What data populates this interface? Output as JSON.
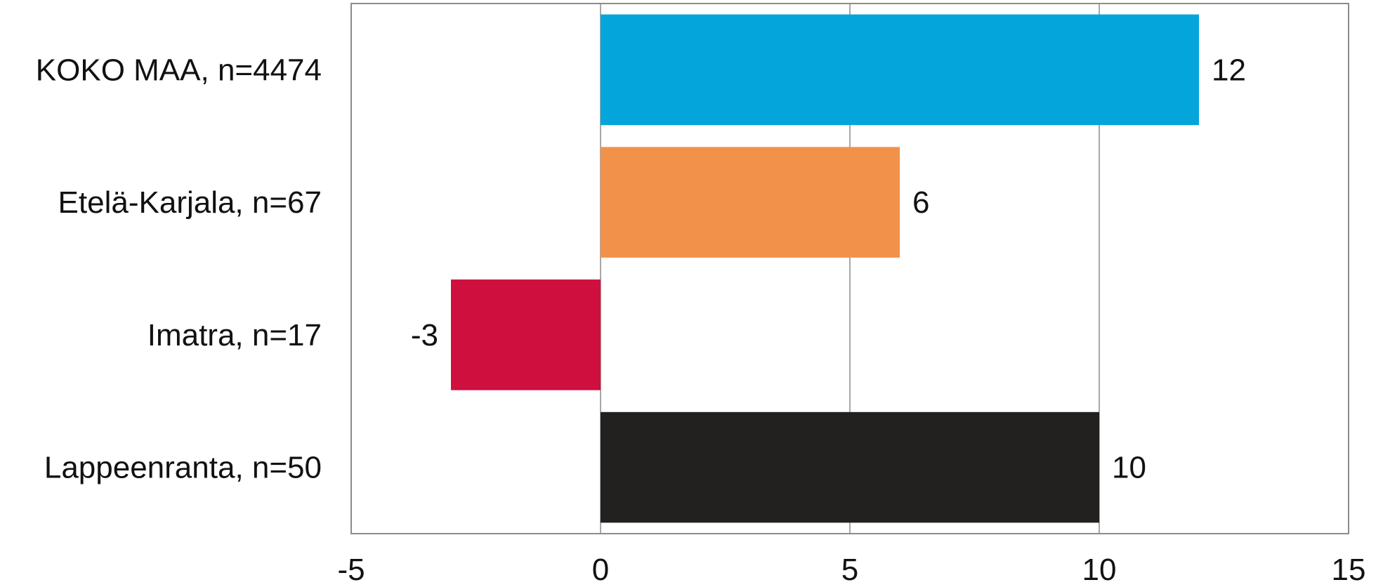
{
  "chart_data": {
    "type": "bar",
    "orientation": "horizontal",
    "categories": [
      "KOKO MAA, n=4474",
      "Etelä-Karjala, n=67",
      "Imatra, n=17",
      "Lappeenranta, n=50"
    ],
    "values": [
      12,
      6,
      -3,
      10
    ],
    "bar_colors": [
      "#03A5DB",
      "#F2924A",
      "#CF0F3D",
      "#222120"
    ],
    "data_labels": [
      "12",
      "6",
      "-3",
      "10"
    ],
    "xlim": [
      -5,
      15
    ],
    "x_ticks": [
      -5,
      0,
      5,
      10,
      15
    ],
    "x_tick_labels": [
      "-5",
      "0",
      "5",
      "10",
      "15"
    ],
    "grid": "vertical",
    "legend": "none",
    "title": "",
    "xlabel": "",
    "ylabel": ""
  }
}
